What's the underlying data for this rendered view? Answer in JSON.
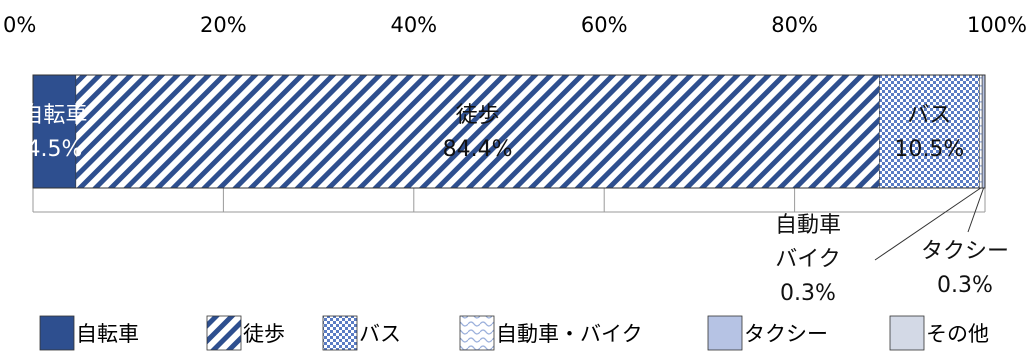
{
  "chart_data": {
    "type": "bar",
    "orientation": "horizontal-stacked-100",
    "xlim": [
      0,
      100
    ],
    "x_ticks": [
      "0%",
      "20%",
      "40%",
      "60%",
      "80%",
      "100%"
    ],
    "grid": true,
    "legend_position": "bottom",
    "series": [
      {
        "name": "自転車",
        "value": 4.5,
        "label_lines": [
          "自転車",
          "4.5%"
        ],
        "pattern": "solid",
        "color": "#2e4f8f"
      },
      {
        "name": "徒歩",
        "value": 84.4,
        "label_lines": [
          "徒歩",
          "84.4%"
        ],
        "pattern": "diagonal",
        "color": "#2e4f8f"
      },
      {
        "name": "バス",
        "value": 10.5,
        "label_lines": [
          "バス",
          "10.5%"
        ],
        "pattern": "checker",
        "color": "#5a7cc4"
      },
      {
        "name": "自動車・バイク",
        "value": 0.3,
        "label_lines": [
          "自動車",
          "バイク",
          "0.3%"
        ],
        "pattern": "wave",
        "color": "#9bb0dc"
      },
      {
        "name": "タクシー",
        "value": 0.3,
        "label_lines": [
          "タクシー",
          "0.3%"
        ],
        "pattern": "solid-light",
        "color": "#b6c3e4"
      },
      {
        "name": "その他",
        "value": 0.0,
        "label_lines": [],
        "pattern": "solid-pale",
        "color": "#d3d9e6"
      }
    ]
  }
}
